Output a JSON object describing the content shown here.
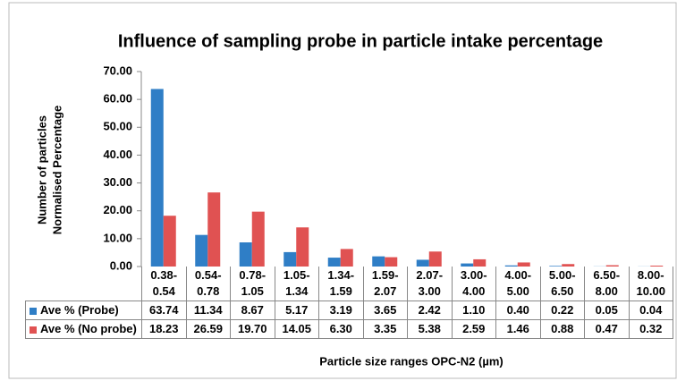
{
  "chart_data": {
    "type": "bar",
    "title": "Influence of sampling probe in particle intake percentage",
    "y_label": [
      "Number of particles",
      "Normalised Percentage"
    ],
    "x_label": "Particle size ranges OPC-N2 (µm)",
    "categories": [
      "0.38-0.54",
      "0.54-0.78",
      "0.78-1.05",
      "1.05-1.34",
      "1.34-1.59",
      "1.59-2.07",
      "2.07-3.00",
      "3.00-4.00",
      "4.00-5.00",
      "5.00-6.50",
      "6.50-8.00",
      "8.00-10.00"
    ],
    "series": [
      {
        "name": "Ave % (Probe)",
        "color": "#2f7ec6",
        "values": [
          63.74,
          11.34,
          8.67,
          5.17,
          3.19,
          3.65,
          2.42,
          1.1,
          0.4,
          0.22,
          0.05,
          0.04
        ],
        "value_labels": [
          "63.74",
          "11.34",
          "8.67",
          "5.17",
          "3.19",
          "3.65",
          "2.42",
          "1.10",
          "0.40",
          "0.22",
          "0.05",
          "0.04"
        ]
      },
      {
        "name": "Ave % (No probe)",
        "color": "#e05252",
        "values": [
          18.23,
          26.59,
          19.7,
          14.05,
          6.3,
          3.35,
          5.38,
          2.59,
          1.46,
          0.88,
          0.47,
          0.32
        ],
        "value_labels": [
          "18.23",
          "26.59",
          "19.70",
          "14.05",
          "6.30",
          "3.35",
          "5.38",
          "2.59",
          "1.46",
          "0.88",
          "0.47",
          "0.32"
        ]
      }
    ],
    "ylim": [
      0,
      70
    ],
    "yticks": [
      {
        "value": 0,
        "label": "0.00"
      },
      {
        "value": 10,
        "label": "10.00"
      },
      {
        "value": 20,
        "label": "20.00"
      },
      {
        "value": 30,
        "label": "30.00"
      },
      {
        "value": 40,
        "label": "40.00"
      },
      {
        "value": 50,
        "label": "50.00"
      },
      {
        "value": 60,
        "label": "60.00"
      },
      {
        "value": 70,
        "label": "70.00"
      }
    ],
    "grid": false
  }
}
